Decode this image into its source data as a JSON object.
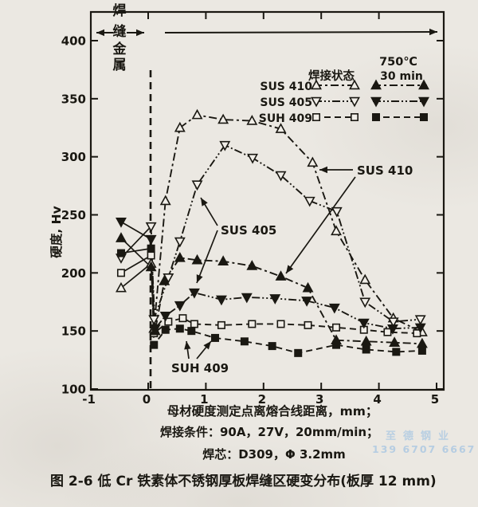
{
  "figure": {
    "weld_metal_label": "焊缝金属",
    "y_axis_title": "硬度, Hv",
    "x_axis_title": "母材硬度测定点离熔合线距离，mm；",
    "condition_line1": "焊接条件：90A，27V，20mm/min；",
    "condition_line2": "焊芯：D309，Φ 3.2mm",
    "caption": "图 2-6  低 Cr 铁素体不锈钢厚板焊缝区硬变分布(板厚 12 mm)",
    "legend": {
      "col_as_welded": "焊接状态",
      "col_treated_line1": "750℃",
      "col_treated_line2": "30 min",
      "row_labels": [
        "SUS 410",
        "SUS 405",
        "SUH 409"
      ]
    },
    "annotations": {
      "sus410": "SUS 410",
      "sus405": "SUS 405",
      "suh409": "SUH 409"
    },
    "watermark": {
      "line1": "至德钢业",
      "line2": "139 6707 6667",
      "color": "#a9c7e2"
    },
    "ink_color": "#1a1812",
    "paper_color": "#ebe8e2"
  },
  "chart_data": {
    "type": "line",
    "title": "图 2-6  低 Cr 铁素体不锈钢厚板焊缝区硬变分布(板厚 12 mm)",
    "xlabel": "母材硬度测定点离熔合线距离，mm；",
    "ylabel": "硬度, Hv",
    "xlim": [
      -1,
      5
    ],
    "ylim": [
      100,
      400
    ],
    "x_ticks": [
      -1,
      0,
      1,
      2,
      3,
      4,
      5
    ],
    "y_ticks": [
      100,
      150,
      200,
      250,
      300,
      350,
      400
    ],
    "fusion_line_x": 0,
    "weld_metal_zone": [
      -1,
      0
    ],
    "base_metal_zone": [
      0.25,
      5
    ],
    "series": [
      {
        "name": "SUS 410",
        "group": "as-welded",
        "marker": "triangle-up",
        "filled": false,
        "dash": "10,4,3,4",
        "weld_segment": [
          [
            -0.47,
            187
          ],
          [
            0.05,
            208
          ]
        ],
        "points": [
          [
            0.05,
            208
          ],
          [
            0.1,
            152
          ],
          [
            0.3,
            262
          ],
          [
            0.55,
            325
          ],
          [
            0.85,
            336
          ],
          [
            1.3,
            332
          ],
          [
            1.8,
            331
          ],
          [
            2.3,
            324
          ],
          [
            2.85,
            295
          ],
          [
            3.26,
            236
          ],
          [
            3.76,
            194
          ],
          [
            4.25,
            161
          ],
          [
            4.75,
            149
          ]
        ]
      },
      {
        "name": "SUS 405",
        "group": "as-welded",
        "marker": "triangle-down",
        "filled": false,
        "dash": "10,3,2,3,2,3",
        "weld_segment": [
          [
            -0.47,
            213
          ],
          [
            0.05,
            240
          ]
        ],
        "points": [
          [
            0.05,
            240
          ],
          [
            0.1,
            160
          ],
          [
            0.35,
            196
          ],
          [
            0.55,
            227
          ],
          [
            0.85,
            276
          ],
          [
            1.33,
            310
          ],
          [
            1.81,
            299
          ],
          [
            2.3,
            284
          ],
          [
            2.8,
            262
          ],
          [
            3.27,
            253
          ],
          [
            3.76,
            175
          ],
          [
            4.25,
            158
          ],
          [
            4.72,
            160
          ]
        ]
      },
      {
        "name": "SUH 409",
        "group": "as-welded",
        "marker": "square",
        "filled": false,
        "dash": "8,5",
        "weld_segment": [
          [
            -0.47,
            200
          ],
          [
            0.05,
            215
          ]
        ],
        "points": [
          [
            0.05,
            215
          ],
          [
            0.1,
            148
          ],
          [
            0.35,
            158
          ],
          [
            0.6,
            161
          ],
          [
            0.8,
            156
          ],
          [
            1.27,
            155
          ],
          [
            1.8,
            156
          ],
          [
            2.3,
            156
          ],
          [
            2.77,
            155
          ],
          [
            3.26,
            153
          ],
          [
            3.74,
            151
          ],
          [
            4.15,
            149
          ],
          [
            4.66,
            148
          ]
        ]
      },
      {
        "name": "SUS 410",
        "group": "750C-30min",
        "marker": "triangle-up",
        "filled": true,
        "dash": "10,4,3,4",
        "weld_segment": [
          [
            -0.47,
            230
          ],
          [
            0.05,
            205
          ]
        ],
        "points": [
          [
            0.05,
            205
          ],
          [
            0.12,
            150
          ],
          [
            0.28,
            193
          ],
          [
            0.55,
            213
          ],
          [
            0.85,
            211
          ],
          [
            1.3,
            210
          ],
          [
            1.8,
            206
          ],
          [
            2.3,
            197
          ],
          [
            2.77,
            187
          ],
          [
            3.26,
            142
          ],
          [
            3.78,
            141
          ],
          [
            4.27,
            140
          ],
          [
            4.75,
            139
          ]
        ]
      },
      {
        "name": "SUS 405",
        "group": "750C-30min",
        "marker": "triangle-down",
        "filled": true,
        "dash": "10,3,2,3,2,3",
        "weld_segment": [
          [
            -0.47,
            244
          ],
          [
            0.05,
            229
          ]
        ],
        "points": [
          [
            0.05,
            229
          ],
          [
            0.12,
            152
          ],
          [
            0.3,
            163
          ],
          [
            0.55,
            172
          ],
          [
            0.8,
            183
          ],
          [
            1.27,
            177
          ],
          [
            1.71,
            179
          ],
          [
            2.2,
            178
          ],
          [
            2.75,
            176
          ],
          [
            3.23,
            170
          ],
          [
            3.74,
            157
          ],
          [
            4.24,
            152
          ],
          [
            4.72,
            153
          ]
        ]
      },
      {
        "name": "SUH 409",
        "group": "750C-30min",
        "marker": "square",
        "filled": true,
        "dash": "8,5",
        "weld_segment": [
          [
            -0.47,
            217
          ],
          [
            0.05,
            221
          ]
        ],
        "points": [
          [
            0.05,
            221
          ],
          [
            0.1,
            138
          ],
          [
            0.3,
            151
          ],
          [
            0.55,
            152
          ],
          [
            0.75,
            150
          ],
          [
            1.16,
            144
          ],
          [
            1.67,
            141
          ],
          [
            2.15,
            137
          ],
          [
            2.6,
            131
          ],
          [
            3.26,
            138
          ],
          [
            3.78,
            134
          ],
          [
            4.3,
            132
          ],
          [
            4.75,
            133
          ]
        ]
      }
    ]
  }
}
